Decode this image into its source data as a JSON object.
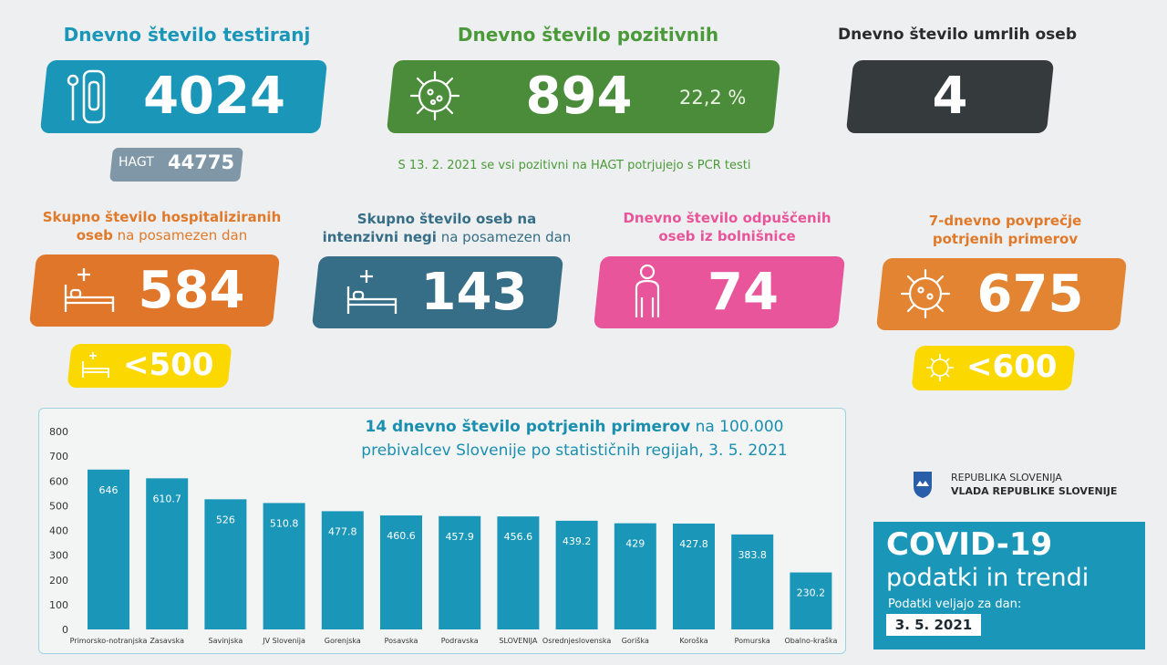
{
  "testing": {
    "title": "Dnevno število testiranj",
    "value": 4024,
    "hagt_label": "HAGT",
    "hagt_value": 44775
  },
  "positive": {
    "title": "Dnevno število pozitivnih",
    "value": 894,
    "share": "22,2 %"
  },
  "deaths": {
    "title": "Dnevno število umrlih oseb",
    "value": 4
  },
  "note": "S 13. 2. 2021 se vsi pozitivni na HAGT potrjujejo s PCR testi",
  "hospitalized": {
    "title": "Skupno število hospitaliziranih oseb",
    "title_rest": " na posamezen dan",
    "value": 584,
    "threshold": "<500"
  },
  "icu": {
    "title": "Skupno število oseb na intenzivni negi",
    "title_rest": " na posamezen dan",
    "value": 143
  },
  "discharged": {
    "title": "Dnevno število odpuščenih oseb iz bolnišnice",
    "value": 74
  },
  "average": {
    "title": "7-dnevno povprečje potrjenih primerov",
    "value": 675,
    "threshold": "<600"
  },
  "government": {
    "line1": "REPUBLIKA SLOVENIJA",
    "line2": "VLADA REPUBLIKE SLOVENIJE"
  },
  "covid_box": {
    "title": "COVID-19",
    "subtitle": "podatki in trendi",
    "valid_label": "Podatki veljajo za dan:",
    "date": "3. 5. 2021"
  },
  "chart_data": {
    "type": "bar",
    "title": "14 dnevno število potrjenih primerov",
    "subtitle": " na 100.000 prebivalcev Slovenije po statističnih regijah, 3. 5. 2021",
    "categories": [
      "Primorsko-notranjska",
      "Zasavska",
      "Savinjska",
      "JV Slovenija",
      "Gorenjska",
      "Posavska",
      "Podravska",
      "SLOVENIJA",
      "Osrednjeslovenska",
      "Goriška",
      "Koroška",
      "Pomurska",
      "Obalno-kraška"
    ],
    "values": [
      646,
      610.7,
      526,
      510.8,
      477.8,
      460.6,
      457.9,
      456.6,
      439.2,
      429,
      427.8,
      383.8,
      230.2
    ],
    "color": "#1a97b8",
    "ylim": [
      0,
      800
    ],
    "yticks": [
      0,
      100,
      200,
      300,
      400,
      500,
      600,
      700,
      800
    ]
  }
}
